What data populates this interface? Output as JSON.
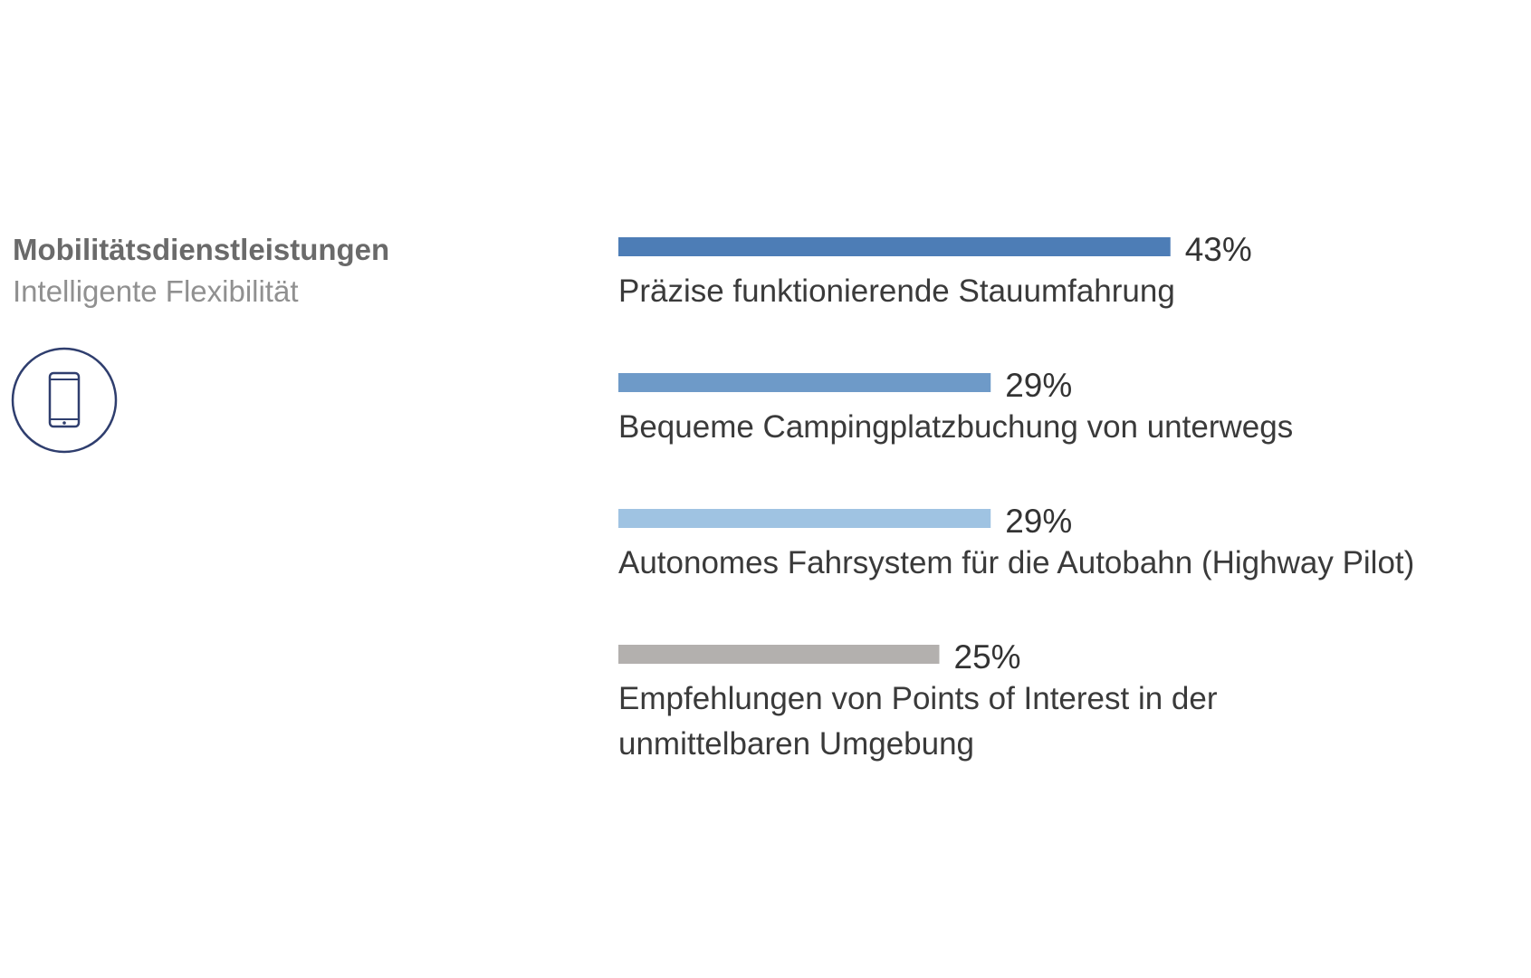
{
  "panel": {
    "title": "Mobilitätsdienstleistungen",
    "subtitle": "Intelligente Flexibilität",
    "icon": "smartphone-icon",
    "icon_color": "#2f3e6e"
  },
  "chart_data": {
    "type": "bar",
    "orientation": "horizontal",
    "value_suffix": "%",
    "xlim": [
      0,
      100
    ],
    "grid": false,
    "bars": [
      {
        "label": [
          "Präzise funktionierende Stauumfahrung"
        ],
        "value": 43,
        "display": "43%",
        "color": "#4d7db6"
      },
      {
        "label": [
          "Bequeme Campingplatzbuchung von unterwegs"
        ],
        "value": 29,
        "display": "29%",
        "color": "#6e9ac8"
      },
      {
        "label": [
          "Autonomes Fahrsystem für die Autobahn (Highway Pilot)"
        ],
        "value": 29,
        "display": "29%",
        "color": "#9fc3e2"
      },
      {
        "label": [
          "Empfehlungen von Points of Interest in der",
          "unmittelbaren Umgebung"
        ],
        "value": 25,
        "display": "25%",
        "color": "#b3b0ae"
      }
    ]
  }
}
